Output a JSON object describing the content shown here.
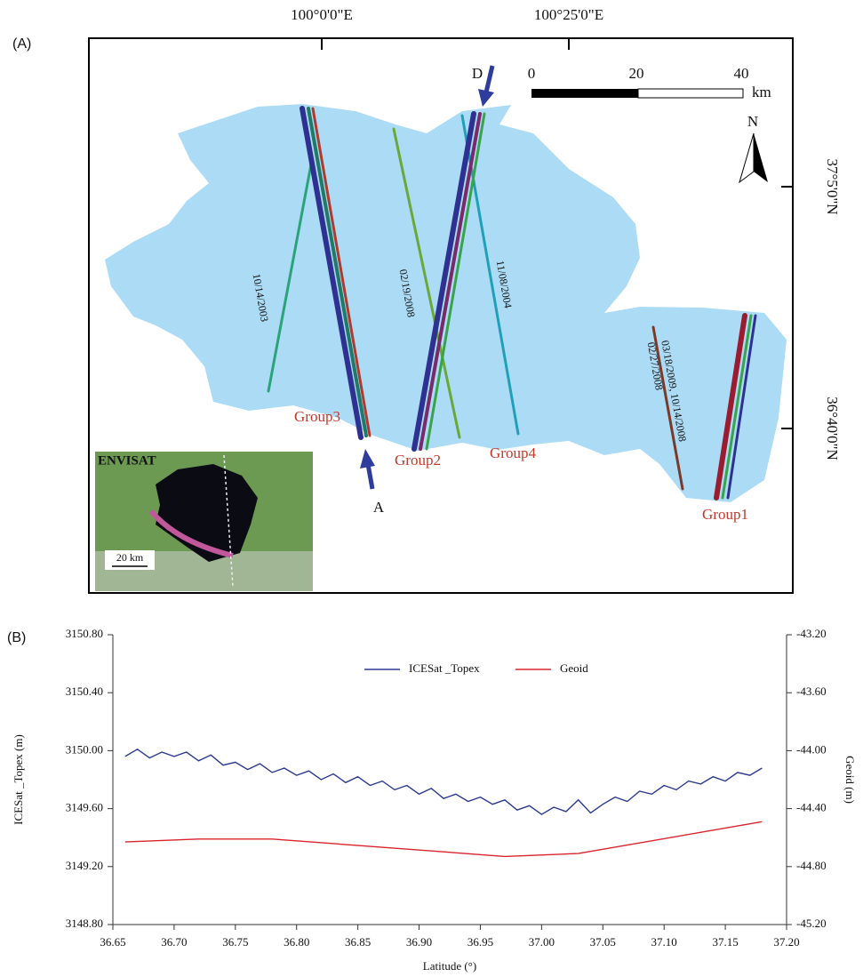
{
  "map": {
    "label": "(A)",
    "lon_labels": [
      "100°0'0\"E",
      "100°25'0\"E"
    ],
    "lat_labels": [
      "37°5'0\"N",
      "36°40'0\"N"
    ],
    "scale_ticks": [
      "0",
      "20",
      "40"
    ],
    "scale_unit": "km",
    "north": "N",
    "arrows": [
      "D",
      "A"
    ],
    "groups": [
      "Group3",
      "Group2",
      "Group4",
      "Group1"
    ],
    "dates": [
      "10/14/2003",
      "02/19/2008",
      "11/08/2004",
      "03/18/2009, 10/14/2008",
      "02/27/2008"
    ],
    "inset_title": "ENVISAT",
    "inset_scale": "20 km"
  },
  "chart_data": {
    "type": "line",
    "panel_label": "(B)",
    "x_label": "Latitude (°)",
    "y_label": "ICESat _Topex (m)",
    "y2_label": "Geoid (m)",
    "xlim": [
      36.65,
      37.2
    ],
    "xticks": [
      36.65,
      {
        "value": 36.7,
        "label": "36.70"
      },
      36.75,
      {
        "value": 36.8,
        "label": "36.80"
      },
      36.85,
      {
        "value": 36.9,
        "label": "36.90"
      },
      36.95,
      {
        "value": 37.0,
        "label": "37.00"
      },
      37.05,
      {
        "value": 37.1,
        "label": "37.10"
      },
      37.15,
      {
        "value": 37.2,
        "label": "37.20"
      }
    ],
    "ylim": [
      3148.8,
      3150.8
    ],
    "yticks": [
      {
        "value": 3148.8,
        "label": "3148.80"
      },
      {
        "value": 3149.2,
        "label": "3149.20"
      },
      {
        "value": 3149.6,
        "label": "3149.60"
      },
      {
        "value": 3150.0,
        "label": "3150.00"
      },
      {
        "value": 3150.4,
        "label": "3150.40"
      },
      {
        "value": 3150.8,
        "label": "3150.80"
      }
    ],
    "y2lim": [
      -45.2,
      -43.2
    ],
    "y2ticks": [
      {
        "value": -45.2,
        "label": "-45.20"
      },
      {
        "value": -44.8,
        "label": "-44.80"
      },
      {
        "value": -44.4,
        "label": "-44.40"
      },
      {
        "value": -44.0,
        "label": "-44.00"
      },
      {
        "value": -43.6,
        "label": "-43.60"
      },
      {
        "value": -43.2,
        "label": "-43.20"
      }
    ],
    "series": [
      {
        "name": "ICESat _Topex",
        "color": "#2b3990",
        "x": [
          36.66,
          36.67,
          36.68,
          36.69,
          36.7,
          36.71,
          36.72,
          36.73,
          36.74,
          36.75,
          36.76,
          36.77,
          36.78,
          36.79,
          36.8,
          36.81,
          36.82,
          36.83,
          36.84,
          36.85,
          36.86,
          36.87,
          36.88,
          36.89,
          36.9,
          36.91,
          36.92,
          36.93,
          36.94,
          36.95,
          36.96,
          36.97,
          36.98,
          36.99,
          37.0,
          37.01,
          37.02,
          37.03,
          37.04,
          37.05,
          37.06,
          37.07,
          37.08,
          37.09,
          37.1,
          37.11,
          37.12,
          37.13,
          37.14,
          37.15,
          37.16,
          37.17,
          37.18
        ],
        "values": [
          3149.96,
          3150.01,
          3149.95,
          3149.99,
          3149.96,
          3149.99,
          3149.93,
          3149.97,
          3149.9,
          3149.92,
          3149.87,
          3149.91,
          3149.85,
          3149.88,
          3149.83,
          3149.86,
          3149.8,
          3149.84,
          3149.78,
          3149.82,
          3149.76,
          3149.79,
          3149.73,
          3149.76,
          3149.7,
          3149.74,
          3149.67,
          3149.7,
          3149.65,
          3149.68,
          3149.63,
          3149.66,
          3149.59,
          3149.62,
          3149.56,
          3149.61,
          3149.58,
          3149.66,
          3149.57,
          3149.63,
          3149.68,
          3149.65,
          3149.72,
          3149.7,
          3149.76,
          3149.73,
          3149.79,
          3149.77,
          3149.82,
          3149.79,
          3149.85,
          3149.83,
          3149.88
        ]
      },
      {
        "name": "Geoid",
        "color": "#d9232d",
        "axis": "y2",
        "x": [
          36.66,
          36.72,
          36.78,
          36.97,
          37.03,
          37.18
        ],
        "values": [
          -44.63,
          -44.61,
          -44.61,
          -44.73,
          -44.71,
          -44.49
        ]
      }
    ]
  }
}
